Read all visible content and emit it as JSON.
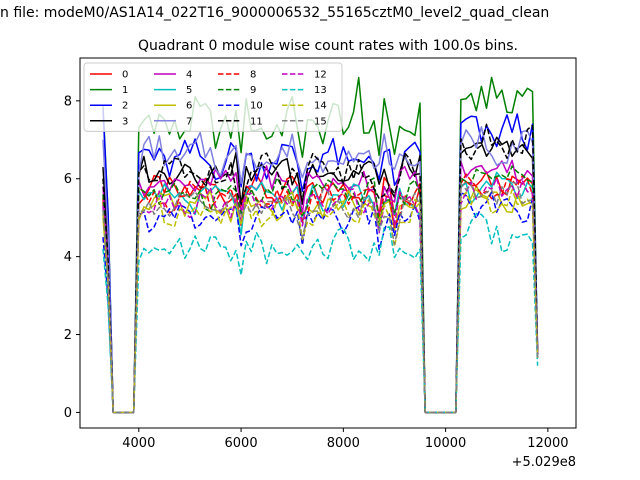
{
  "suptitle": "n file: modeM0/AS1A14_022T16_9000006532_55165cztM0_level2_quad_clean",
  "chart_data": {
    "type": "line",
    "title": "Quadrant 0 module wise count rates with 100.0s bins.",
    "xlabel": "",
    "ylabel": "",
    "x_offset_label": "+5.029e8",
    "xlim": [
      2850,
      12550
    ],
    "ylim": [
      -0.4,
      9.1
    ],
    "x_ticks": [
      {
        "value": 4000,
        "label": "4000"
      },
      {
        "value": 6000,
        "label": "6000"
      },
      {
        "value": 8000,
        "label": "8000"
      },
      {
        "value": 10000,
        "label": "10000"
      },
      {
        "value": 12000,
        "label": "12000"
      }
    ],
    "y_ticks": [
      {
        "value": 0,
        "label": "0"
      },
      {
        "value": 2,
        "label": "2"
      },
      {
        "value": 4,
        "label": "4"
      },
      {
        "value": 6,
        "label": "6"
      },
      {
        "value": 8,
        "label": "8"
      }
    ],
    "legend_position": "top-left",
    "legend_columns": 4,
    "series": [
      {
        "name": "0",
        "color": "#ff0000",
        "dash": "solid",
        "base1": 5.7,
        "base2": 6.0,
        "amp": 0.3,
        "start": 5.5,
        "end": 1.5
      },
      {
        "name": "1",
        "color": "#008000",
        "dash": "solid",
        "base1": 7.4,
        "base2": 8.0,
        "amp": 0.5,
        "start": 7.9,
        "end": 1.5,
        "peak": 8.6
      },
      {
        "name": "2",
        "color": "#0000ff",
        "dash": "solid",
        "base1": 6.5,
        "base2": 7.2,
        "amp": 0.4,
        "start": 7.8,
        "end": 1.6
      },
      {
        "name": "3",
        "color": "#000000",
        "dash": "solid",
        "base1": 6.2,
        "base2": 6.8,
        "amp": 0.35,
        "start": 6.3,
        "end": 1.5
      },
      {
        "name": "4",
        "color": "#bf00bf",
        "dash": "solid",
        "base1": 5.9,
        "base2": 6.3,
        "amp": 0.3,
        "start": 5.8,
        "end": 1.5
      },
      {
        "name": "5",
        "color": "#00bfbf",
        "dash": "solid",
        "base1": 5.5,
        "base2": 5.8,
        "amp": 0.3,
        "start": 5.2,
        "end": 1.4
      },
      {
        "name": "6",
        "color": "#bfbf00",
        "dash": "solid",
        "base1": 5.3,
        "base2": 5.5,
        "amp": 0.3,
        "start": 5.0,
        "end": 1.4
      },
      {
        "name": "7",
        "color": "#7f7fdf",
        "dash": "solid",
        "base1": 6.6,
        "base2": 6.9,
        "amp": 0.4,
        "start": 7.0,
        "end": 1.6
      },
      {
        "name": "8",
        "color": "#ff0000",
        "dash": "dashed",
        "base1": 5.5,
        "base2": 5.9,
        "amp": 0.3,
        "start": 5.4,
        "end": 1.5
      },
      {
        "name": "9",
        "color": "#008000",
        "dash": "dashed",
        "base1": 5.6,
        "base2": 6.1,
        "amp": 0.3,
        "start": 5.6,
        "end": 1.5
      },
      {
        "name": "10",
        "color": "#0000ff",
        "dash": "dashed",
        "base1": 5.0,
        "base2": 5.3,
        "amp": 0.3,
        "start": 4.5,
        "end": 1.4
      },
      {
        "name": "11",
        "color": "#000000",
        "dash": "dashed",
        "base1": 6.1,
        "base2": 6.9,
        "amp": 0.4,
        "start": 6.0,
        "end": 1.5
      },
      {
        "name": "12",
        "color": "#bf00bf",
        "dash": "dashed",
        "base1": 5.4,
        "base2": 5.7,
        "amp": 0.3,
        "start": 5.3,
        "end": 1.5
      },
      {
        "name": "13",
        "color": "#00bfbf",
        "dash": "dashed",
        "base1": 4.3,
        "base2": 4.6,
        "amp": 0.35,
        "start": 4.2,
        "end": 1.2
      },
      {
        "name": "14",
        "color": "#bfbf00",
        "dash": "dashed",
        "base1": 5.2,
        "base2": 5.4,
        "amp": 0.3,
        "start": 5.1,
        "end": 1.4
      },
      {
        "name": "15",
        "color": "#7f7f7f",
        "dash": "dashed",
        "base1": 5.3,
        "base2": 5.6,
        "amp": 0.3,
        "start": 5.2,
        "end": 1.4
      }
    ]
  }
}
